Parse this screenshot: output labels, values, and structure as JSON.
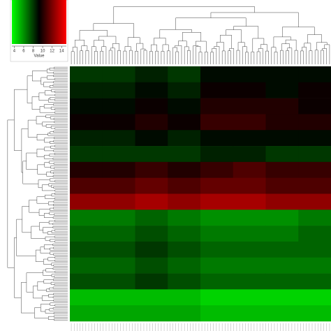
{
  "chart_data": {
    "type": "heatmap",
    "color_key": {
      "label": "Value",
      "lim": [
        3.5,
        15
      ],
      "ticks": [
        4,
        6,
        8,
        10,
        12,
        14
      ]
    },
    "colors": {
      "low": "#00ff00",
      "mid": "#000000",
      "high": "#ff0000"
    },
    "values": [
      [
        8,
        8,
        8.5,
        8,
        9,
        9,
        9,
        9
      ],
      [
        8.5,
        8.5,
        9,
        8.5,
        9.5,
        9.5,
        9,
        9.5
      ],
      [
        9,
        9,
        9.5,
        9,
        10,
        10,
        10,
        9.5
      ],
      [
        9.5,
        9.5,
        10,
        9.5,
        10.5,
        10.5,
        10,
        10
      ],
      [
        8.5,
        8.5,
        9,
        8.5,
        9,
        9,
        9,
        9
      ],
      [
        8,
        8,
        8,
        8,
        8.5,
        8.5,
        8,
        8
      ],
      [
        10,
        10,
        10.5,
        10,
        10.5,
        11,
        10.5,
        10.5
      ],
      [
        11,
        11,
        11.5,
        11,
        11.5,
        11.5,
        11,
        11
      ],
      [
        12.5,
        12.5,
        13,
        12.5,
        13,
        13,
        12.5,
        12.5
      ],
      [
        6.5,
        6.5,
        7,
        6.5,
        6,
        6,
        6,
        6.5
      ],
      [
        7,
        7,
        7.5,
        7,
        6.5,
        6.5,
        6.5,
        7
      ],
      [
        7.5,
        7.5,
        8,
        7.5,
        7,
        7,
        7,
        7
      ],
      [
        7,
        7,
        7.5,
        7,
        6.5,
        6.5,
        6.5,
        6.5
      ],
      [
        7.5,
        7.5,
        8,
        7.5,
        7,
        7,
        7,
        7
      ],
      [
        5,
        5,
        5,
        5,
        4.5,
        4.5,
        4.5,
        4.5
      ],
      [
        5.5,
        5.5,
        5.5,
        5.5,
        5,
        5,
        5,
        5
      ]
    ]
  }
}
